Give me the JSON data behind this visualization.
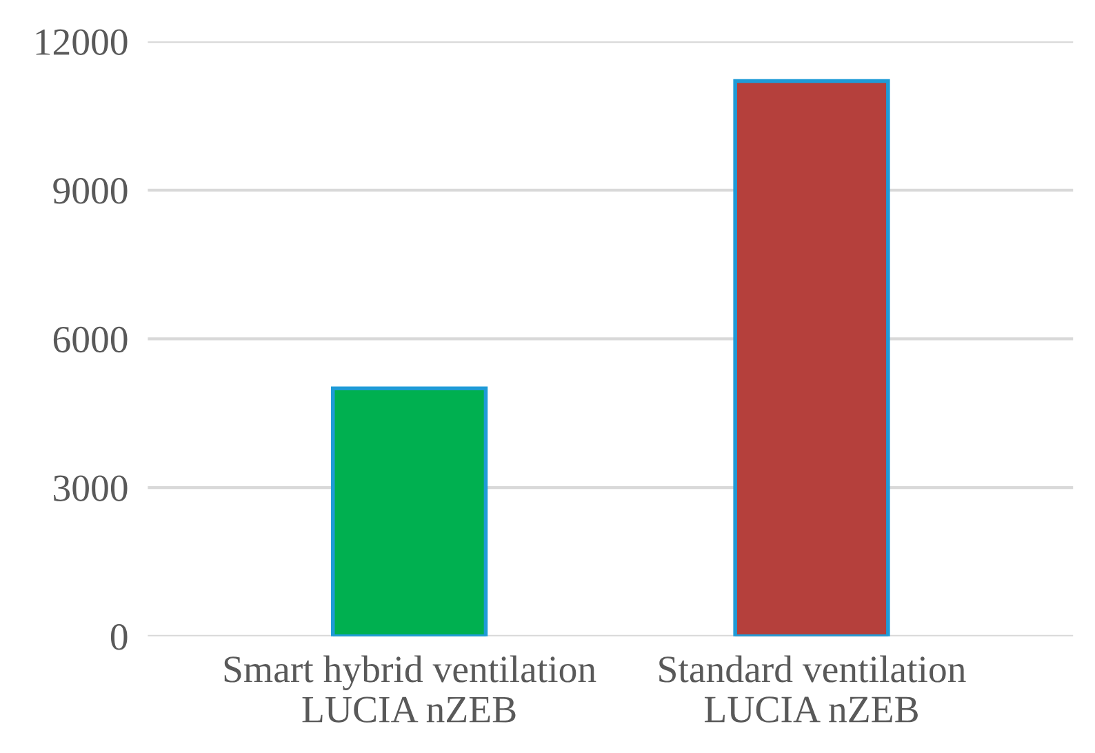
{
  "chart_data": {
    "type": "bar",
    "categories": [
      "Smart hybrid ventilation\nLUCIA nZEB",
      "Standard ventilation\nLUCIA nZEB"
    ],
    "values": [
      5000,
      11200
    ],
    "colors": [
      "#00b050",
      "#b5403c"
    ],
    "ylim": [
      0,
      12000
    ],
    "yticks": [
      0,
      3000,
      6000,
      9000,
      12000
    ],
    "grid": "y"
  }
}
